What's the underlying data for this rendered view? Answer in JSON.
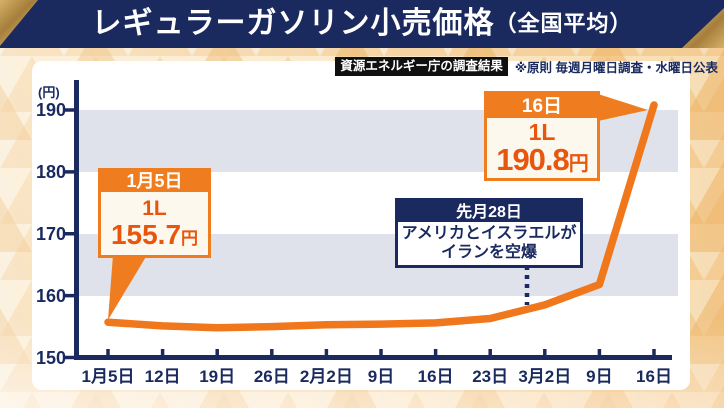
{
  "banner": {
    "title": "レギュラーガソリン小売価格",
    "title_sub": "（全国平均）"
  },
  "meta": {
    "source_badge": "資源エネルギー庁の調査結果",
    "note": "※原則 毎週月曜日調査・水曜日公表"
  },
  "colors": {
    "navy": "#1a2a5f",
    "line_orange": "#f0771c",
    "callout_header_orange": "#ef7d1f",
    "price_text_orange": "#e8560e",
    "band_gray": "#dfe2ea",
    "panel_bg": "#ffffff",
    "badge_bg": "#101010",
    "pattern_base": "#f8e9ce"
  },
  "chart_data": {
    "type": "line",
    "title": "レギュラーガソリン小売価格（全国平均）",
    "unit": "円",
    "y_axis_label": "(円)",
    "y_ticks": [
      150,
      160,
      170,
      180,
      190
    ],
    "ylim": [
      150,
      195
    ],
    "grid": "alternating horizontal gray bands (160-170, 180-190)",
    "legend": "none",
    "categories": [
      "1月5日",
      "12日",
      "19日",
      "26日",
      "2月2日",
      "9日",
      "16日",
      "23日",
      "3月2日",
      "9日",
      "16日"
    ],
    "values": [
      155.7,
      155.1,
      154.8,
      155.0,
      155.3,
      155.4,
      155.6,
      156.3,
      158.5,
      161.8,
      190.8
    ],
    "series_color": "#f0771c"
  },
  "callouts": {
    "first": {
      "date": "1月5日",
      "volume": "1L",
      "price": "155.7",
      "unit": "円"
    },
    "peak": {
      "date": "16日",
      "volume": "1L",
      "price": "190.8",
      "unit": "円"
    },
    "event": {
      "date": "先月28日",
      "line1": "アメリカとイスラエルが",
      "line2": "イランを空爆"
    }
  }
}
